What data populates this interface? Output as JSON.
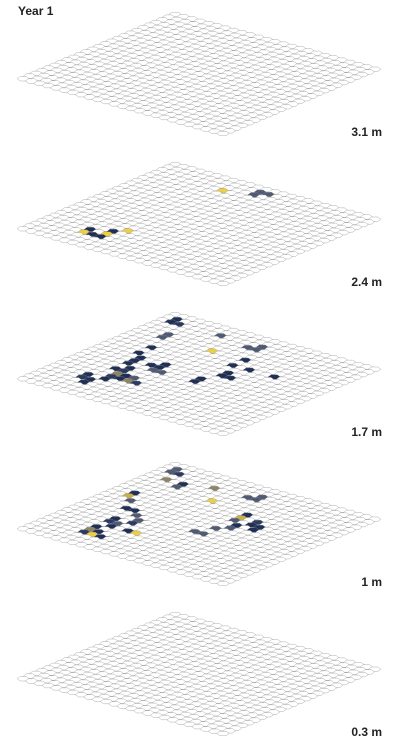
{
  "title": "Year 1",
  "chart_data": {
    "type": "heatmap",
    "title": "Year 1",
    "grid": {
      "rows": 25,
      "cols": 25
    },
    "empty_color": "#ffffff",
    "layers": [
      {
        "label": "3.1 m",
        "cells": []
      },
      {
        "label": "2.4 m",
        "cells": [
          {
            "r": 3,
            "c": 8,
            "color": "#eecf41"
          },
          {
            "r": 1,
            "c": 11,
            "color": "#505a75"
          },
          {
            "r": 1,
            "c": 12,
            "color": "#505a75"
          },
          {
            "r": 2,
            "c": 11,
            "color": "#505a75"
          },
          {
            "r": 20,
            "c": 5,
            "color": "#1f2f55"
          },
          {
            "r": 19,
            "c": 7,
            "color": "#1f2f55"
          },
          {
            "r": 18,
            "c": 8,
            "color": "#eecf41"
          },
          {
            "r": 20,
            "c": 7,
            "color": "#eecf41"
          },
          {
            "r": 21,
            "c": 6,
            "color": "#1f2f55"
          },
          {
            "r": 21,
            "c": 7,
            "color": "#1f2f55"
          },
          {
            "r": 21,
            "c": 5,
            "color": "#eecf41"
          }
        ]
      },
      {
        "label": "1.7 m",
        "cells": [
          {
            "r": 1,
            "c": 1,
            "color": "#1f2f55"
          },
          {
            "r": 2,
            "c": 1,
            "color": "#1f2f55"
          },
          {
            "r": 2,
            "c": 2,
            "color": "#2a3a60"
          },
          {
            "r": 5,
            "c": 3,
            "color": "#505a75"
          },
          {
            "r": 6,
            "c": 3,
            "color": "#505a75"
          },
          {
            "r": 2,
            "c": 7,
            "color": "#505a75"
          },
          {
            "r": 6,
            "c": 9,
            "color": "#eecf41"
          },
          {
            "r": 2,
            "c": 12,
            "color": "#505a75"
          },
          {
            "r": 3,
            "c": 12,
            "color": "#505a75"
          },
          {
            "r": 3,
            "c": 11,
            "color": "#505a75"
          },
          {
            "r": 6,
            "c": 13,
            "color": "#1f2f55"
          },
          {
            "r": 8,
            "c": 13,
            "color": "#1f2f55"
          },
          {
            "r": 8,
            "c": 15,
            "color": "#1f2f55"
          },
          {
            "r": 10,
            "c": 14,
            "color": "#1f2f55"
          },
          {
            "r": 11,
            "c": 14,
            "color": "#1f2f55"
          },
          {
            "r": 11,
            "c": 15,
            "color": "#1f2f55"
          },
          {
            "r": 13,
            "c": 13,
            "color": "#1f2f55"
          },
          {
            "r": 14,
            "c": 13,
            "color": "#1f2f55"
          },
          {
            "r": 8,
            "c": 18,
            "color": "#1f2f55"
          },
          {
            "r": 9,
            "c": 4,
            "color": "#1f2f55"
          },
          {
            "r": 11,
            "c": 4,
            "color": "#1f2f55"
          },
          {
            "r": 12,
            "c": 5,
            "color": "#1f2f55"
          },
          {
            "r": 13,
            "c": 5,
            "color": "#1f2f55"
          },
          {
            "r": 14,
            "c": 5,
            "color": "#1f2f55"
          },
          {
            "r": 12,
            "c": 8,
            "color": "#1f2f55"
          },
          {
            "r": 13,
            "c": 7,
            "color": "#1f2f55"
          },
          {
            "r": 13,
            "c": 8,
            "color": "#1f2f55"
          },
          {
            "r": 14,
            "c": 8,
            "color": "#505a75"
          },
          {
            "r": 14,
            "c": 9,
            "color": "#505a75"
          },
          {
            "r": 15,
            "c": 6,
            "color": "#1f2f55"
          },
          {
            "r": 16,
            "c": 6,
            "color": "#2a3a60"
          },
          {
            "r": 16,
            "c": 5,
            "color": "#1f2f55"
          },
          {
            "r": 17,
            "c": 7,
            "color": "#1f2f55"
          },
          {
            "r": 17,
            "c": 8,
            "color": "#505a75"
          },
          {
            "r": 18,
            "c": 7,
            "color": "#1f2f55"
          },
          {
            "r": 17,
            "c": 6,
            "color": "#8f8566"
          },
          {
            "r": 18,
            "c": 6,
            "color": "#2a3a60"
          },
          {
            "r": 18,
            "c": 8,
            "color": "#8f8566"
          },
          {
            "r": 18,
            "c": 9,
            "color": "#2a3a60"
          },
          {
            "r": 19,
            "c": 4,
            "color": "#1f2f55"
          },
          {
            "r": 20,
            "c": 5,
            "color": "#1f2f55"
          },
          {
            "r": 19,
            "c": 6,
            "color": "#1f2f55"
          },
          {
            "r": 20,
            "c": 4,
            "color": "#2a3a60"
          },
          {
            "r": 21,
            "c": 5,
            "color": "#1f2f55"
          }
        ]
      },
      {
        "label": "1 m",
        "cells": [
          {
            "r": 1,
            "c": 1,
            "color": "#505a75"
          },
          {
            "r": 2,
            "c": 1,
            "color": "#505a75"
          },
          {
            "r": 2,
            "c": 2,
            "color": "#2a3a60"
          },
          {
            "r": 4,
            "c": 2,
            "color": "#8f8566"
          },
          {
            "r": 4,
            "c": 4,
            "color": "#1f2f55"
          },
          {
            "r": 5,
            "c": 4,
            "color": "#505a75"
          },
          {
            "r": 3,
            "c": 7,
            "color": "#8f8566"
          },
          {
            "r": 6,
            "c": 9,
            "color": "#eecf41"
          },
          {
            "r": 2,
            "c": 12,
            "color": "#505a75"
          },
          {
            "r": 3,
            "c": 12,
            "color": "#505a75"
          },
          {
            "r": 3,
            "c": 11,
            "color": "#505a75"
          },
          {
            "r": 7,
            "c": 14,
            "color": "#1f2f55"
          },
          {
            "r": 8,
            "c": 14,
            "color": "#c9b04a"
          },
          {
            "r": 9,
            "c": 14,
            "color": "#505a75"
          },
          {
            "r": 8,
            "c": 16,
            "color": "#2a3a60"
          },
          {
            "r": 9,
            "c": 16,
            "color": "#1f2f55"
          },
          {
            "r": 9,
            "c": 17,
            "color": "#1f2f55"
          },
          {
            "r": 10,
            "c": 15,
            "color": "#1f2f55"
          },
          {
            "r": 11,
            "c": 15,
            "color": "#505a75"
          },
          {
            "r": 12,
            "c": 14,
            "color": "#505a75"
          },
          {
            "r": 14,
            "c": 13,
            "color": "#505a75"
          },
          {
            "r": 14,
            "c": 14,
            "color": "#505a75"
          },
          {
            "r": 10,
            "c": 17,
            "color": "#1f2f55"
          },
          {
            "r": 10,
            "c": 2,
            "color": "#c9b04a"
          },
          {
            "r": 9,
            "c": 2,
            "color": "#1f2f55"
          },
          {
            "r": 11,
            "c": 3,
            "color": "#505a75"
          },
          {
            "r": 13,
            "c": 4,
            "color": "#1f2f55"
          },
          {
            "r": 13,
            "c": 5,
            "color": "#1f2f55"
          },
          {
            "r": 14,
            "c": 6,
            "color": "#505a75"
          },
          {
            "r": 15,
            "c": 7,
            "color": "#505a75"
          },
          {
            "r": 16,
            "c": 7,
            "color": "#2a3a60"
          },
          {
            "r": 16,
            "c": 5,
            "color": "#1f2f55"
          },
          {
            "r": 17,
            "c": 5,
            "color": "#2a3a60"
          },
          {
            "r": 17,
            "c": 6,
            "color": "#505a75"
          },
          {
            "r": 18,
            "c": 6,
            "color": "#1f2f55"
          },
          {
            "r": 18,
            "c": 8,
            "color": "#1f2f55"
          },
          {
            "r": 18,
            "c": 9,
            "color": "#eecf41"
          },
          {
            "r": 19,
            "c": 5,
            "color": "#1f2f55"
          },
          {
            "r": 20,
            "c": 5,
            "color": "#8f8566"
          },
          {
            "r": 20,
            "c": 6,
            "color": "#1f2f55"
          },
          {
            "r": 21,
            "c": 6,
            "color": "#eecf41"
          },
          {
            "r": 21,
            "c": 7,
            "color": "#1f2f55"
          },
          {
            "r": 21,
            "c": 5,
            "color": "#2a3a60"
          }
        ]
      },
      {
        "label": "0.3 m",
        "cells": []
      }
    ]
  }
}
